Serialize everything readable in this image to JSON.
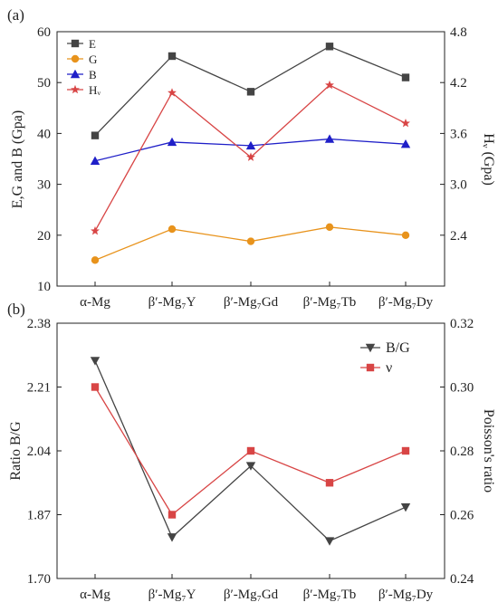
{
  "categories": [
    "α-Mg",
    "β′-Mg₇Y",
    "β′-Mg₇Gd",
    "β′-Mg₇Tb",
    "β′-Mg₇Dy"
  ],
  "chart_data": [
    {
      "type": "line",
      "panel_label": "(a)",
      "categories": [
        "α-Mg",
        "β′-Mg₇Y",
        "β′-Mg₇Gd",
        "β′-Mg₇Tb",
        "β′-Mg₇Dy"
      ],
      "ylabel": "E,G and B (Gpa)",
      "ylim": [
        10,
        60
      ],
      "yticks": [
        "10",
        "20",
        "30",
        "40",
        "50",
        "60"
      ],
      "y2label": "Hᵥ (Gpa)",
      "y2lim": [
        1.8,
        4.8
      ],
      "y2ticks": [
        "2.4",
        "3.0",
        "3.6",
        "4.2",
        "4.8"
      ],
      "legend_position": "top-left",
      "series": [
        {
          "name": "E",
          "axis": "left",
          "color": "#444444",
          "marker": "square",
          "values": [
            39.6,
            55.2,
            48.2,
            57.1,
            51.0
          ]
        },
        {
          "name": "G",
          "axis": "left",
          "color": "#e8931c",
          "marker": "circle",
          "values": [
            15.1,
            21.2,
            18.8,
            21.6,
            20.0
          ]
        },
        {
          "name": "B",
          "axis": "left",
          "color": "#1f1fc8",
          "marker": "triangle",
          "values": [
            34.6,
            38.3,
            37.6,
            38.9,
            37.9
          ]
        },
        {
          "name": "Hᵥ",
          "axis": "right",
          "color": "#d84545",
          "marker": "star",
          "values": [
            2.45,
            4.08,
            3.32,
            4.17,
            3.72
          ]
        }
      ]
    },
    {
      "type": "line",
      "panel_label": "(b)",
      "categories": [
        "α-Mg",
        "β′-Mg₇Y",
        "β′-Mg₇Gd",
        "β′-Mg₇Tb",
        "β′-Mg₇Dy"
      ],
      "ylabel": "Ratio B/G",
      "ylim": [
        1.7,
        2.38
      ],
      "yticks": [
        "1.70",
        "1.87",
        "2.04",
        "2.21",
        "2.38"
      ],
      "y2label": "Poisson's ratio",
      "y2lim": [
        0.24,
        0.32
      ],
      "y2ticks": [
        "0.24",
        "0.26",
        "0.28",
        "0.30",
        "0.32"
      ],
      "legend_position": "top-right",
      "series": [
        {
          "name": "B/G",
          "axis": "left",
          "color": "#444444",
          "marker": "triangle-down",
          "values": [
            2.28,
            1.81,
            2.0,
            1.8,
            1.89
          ]
        },
        {
          "name": "ν",
          "axis": "right",
          "color": "#d84545",
          "marker": "square",
          "values": [
            0.3,
            0.26,
            0.28,
            0.27,
            0.28
          ]
        }
      ]
    }
  ]
}
